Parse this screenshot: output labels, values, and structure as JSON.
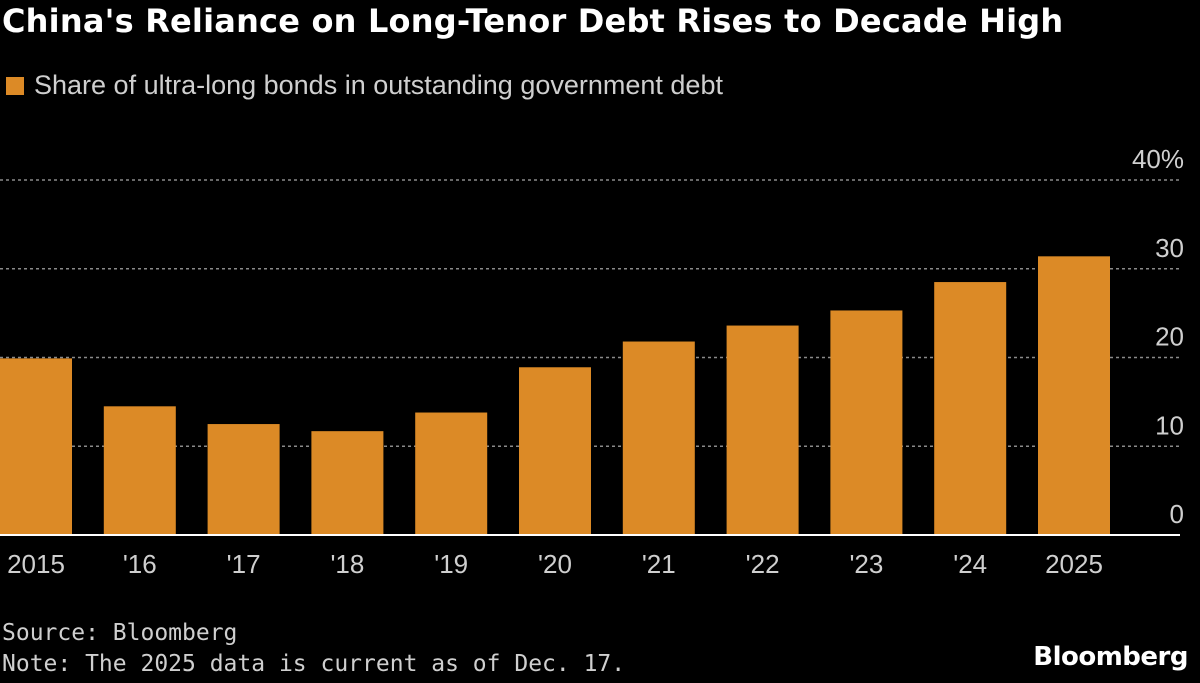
{
  "header": {
    "title": "China's Reliance on Long-Tenor Debt Rises to Decade High"
  },
  "legend": {
    "label": "Share of ultra-long bonds in outstanding government debt"
  },
  "footer": {
    "source": "Source: Bloomberg",
    "note": "Note: The 2025 data is current as of Dec. 17.",
    "logo": "Bloomberg"
  },
  "colors": {
    "bar": "#dc8a26",
    "background": "#000000",
    "grid": "#8a8a8a",
    "text": "#cfcfcf"
  },
  "chart_data": {
    "type": "bar",
    "title": "China's Reliance on Long-Tenor Debt Rises to Decade High",
    "categories": [
      "2015",
      "'16",
      "'17",
      "'18",
      "'19",
      "'20",
      "'21",
      "'22",
      "'23",
      "'24",
      "2025"
    ],
    "series": [
      {
        "name": "Share of ultra-long bonds in outstanding government debt",
        "values": [
          19.9,
          14.5,
          12.5,
          11.7,
          13.8,
          18.9,
          21.8,
          23.6,
          25.3,
          28.5,
          31.4
        ]
      }
    ],
    "ylim": [
      0,
      40
    ],
    "yticks": [
      0,
      10,
      20,
      30,
      40
    ],
    "ytick_labels": [
      "0",
      "10",
      "20",
      "30",
      "40%"
    ],
    "y_axis_position": "right",
    "grid": true,
    "legend_position": "top-left",
    "xlabel": "",
    "ylabel": ""
  }
}
